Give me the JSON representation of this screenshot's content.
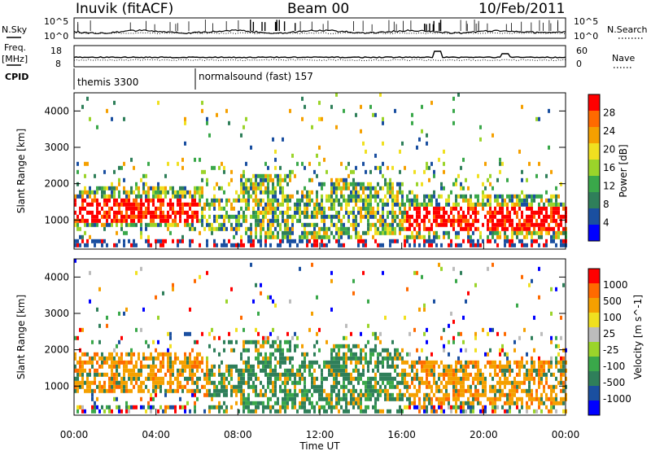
{
  "header": {
    "title": "Inuvik (fitACF)",
    "beam": "Beam 00",
    "date": "10/Feb/2011"
  },
  "top_panels": {
    "nsky_label": "N.Sky",
    "nsearch_label": "N.Search",
    "log_top": "10^5",
    "log_bottom": "10^0",
    "freq_label": "Freq.",
    "freq_unit": "[MHz]",
    "freq_ticks": [
      "18",
      "8"
    ],
    "nave_label": "Nave",
    "nave_ticks": [
      "60",
      "0"
    ],
    "cpid_label": "CPID",
    "cpid_segments": [
      "themis 3300",
      "normalsound (fast) 157"
    ]
  },
  "colors": {
    "power_scale": [
      "#0000ff",
      "#1a4fa0",
      "#2f7f5a",
      "#3aa84a",
      "#9bd42a",
      "#f0e020",
      "#f5a000",
      "#ff6a00",
      "#ff0000"
    ],
    "velocity_scale": [
      "#0000ff",
      "#1a4fa0",
      "#2f7f5a",
      "#3aa84a",
      "#9bd42a",
      "#bcbcbc",
      "#f0e020",
      "#f5a000",
      "#ff6a00",
      "#ff0000"
    ]
  },
  "chart_data": [
    {
      "type": "heatmap",
      "name": "power",
      "ylabel": "Slant Range [km]",
      "y_ticks": [
        "1000",
        "2000",
        "3000",
        "4000"
      ],
      "ylim": [
        200,
        4500
      ],
      "colorbar": {
        "label": "Power [dB]",
        "ticks": [
          "4",
          "8",
          "12",
          "16",
          "20",
          "24",
          "28"
        ]
      },
      "dominant_bands": [
        {
          "t_start_h": 0.0,
          "t_end_h": 6.0,
          "range_km": [
            800,
            1800
          ],
          "level": "high"
        },
        {
          "t_start_h": 16.0,
          "t_end_h": 24.0,
          "range_km": [
            600,
            1500
          ],
          "level": "high"
        }
      ]
    },
    {
      "type": "heatmap",
      "name": "velocity",
      "xlabel": "Time UT",
      "ylabel": "Slant Range [km]",
      "x_ticks": [
        "00:00",
        "04:00",
        "08:00",
        "12:00",
        "16:00",
        "20:00",
        "00:00"
      ],
      "y_ticks": [
        "1000",
        "2000",
        "3000",
        "4000"
      ],
      "ylim": [
        200,
        4500
      ],
      "xlim_h": [
        0,
        24
      ],
      "colorbar": {
        "label": "Velocity  [m s^-1]",
        "ticks": [
          "1000",
          "500",
          "100",
          "25",
          "-25",
          "-100",
          "-500",
          "-1000"
        ]
      }
    }
  ]
}
